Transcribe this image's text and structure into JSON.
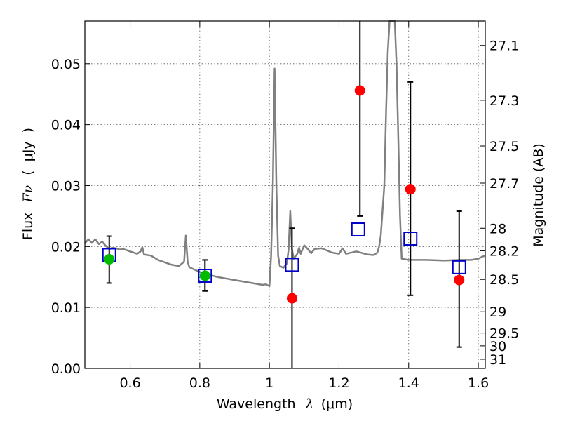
{
  "chart_data": {
    "type": "scatter",
    "xlabel": "Wavelength",
    "xlabel_symbol": "λ",
    "xlabel_unit_open": "(",
    "xlabel_unit": "μm",
    "xlabel_unit_close": ")",
    "ylabel": "Flux",
    "ylabel_symbol": "Fν",
    "ylabel_unit_open": "(",
    "ylabel_unit": "μJy",
    "ylabel_unit_close": ")",
    "y2label": "Magnitude (AB)",
    "xlim": [
      0.47,
      1.62
    ],
    "ylim": [
      0.0,
      0.057
    ],
    "xticks": [
      {
        "v": 0.6,
        "label": "0.6"
      },
      {
        "v": 0.8,
        "label": "0.8"
      },
      {
        "v": 1.0,
        "label": "1"
      },
      {
        "v": 1.2,
        "label": "1.2"
      },
      {
        "v": 1.4,
        "label": "1.4"
      },
      {
        "v": 1.6,
        "label": "1.6"
      }
    ],
    "yticks": [
      {
        "v": 0.0,
        "label": "0.00"
      },
      {
        "v": 0.01,
        "label": "0.01"
      },
      {
        "v": 0.02,
        "label": "0.02"
      },
      {
        "v": 0.03,
        "label": "0.03"
      },
      {
        "v": 0.04,
        "label": "0.04"
      },
      {
        "v": 0.05,
        "label": "0.05"
      }
    ],
    "magnitude_ticks": [
      {
        "v": 0.053,
        "label": "27.1"
      },
      {
        "v": 0.044,
        "label": "27.3"
      },
      {
        "v": 0.0365,
        "label": "27.5"
      },
      {
        "v": 0.0304,
        "label": "27.7"
      },
      {
        "v": 0.023,
        "label": "28"
      },
      {
        "v": 0.0193,
        "label": "28.2"
      },
      {
        "v": 0.0146,
        "label": "28.5"
      },
      {
        "v": 0.0093,
        "label": "29"
      },
      {
        "v": 0.0058,
        "label": "29.5"
      },
      {
        "v": 0.0037,
        "label": "30"
      },
      {
        "v": 0.0015,
        "label": "31"
      }
    ],
    "series": [
      {
        "name": "model_spectrum",
        "kind": "line",
        "color": "#808080",
        "x": [
          0.47,
          0.48,
          0.49,
          0.5,
          0.51,
          0.52,
          0.53,
          0.54,
          0.55,
          0.56,
          0.57,
          0.58,
          0.6,
          0.62,
          0.63,
          0.635,
          0.64,
          0.66,
          0.68,
          0.7,
          0.72,
          0.74,
          0.755,
          0.76,
          0.765,
          0.77,
          0.8,
          0.85,
          0.9,
          0.95,
          0.98,
          0.99,
          1.0,
          1.005,
          1.01,
          1.015,
          1.02,
          1.025,
          1.03,
          1.04,
          1.05,
          1.055,
          1.06,
          1.065,
          1.07,
          1.08,
          1.085,
          1.09,
          1.1,
          1.11,
          1.12,
          1.13,
          1.15,
          1.18,
          1.2,
          1.21,
          1.22,
          1.25,
          1.28,
          1.3,
          1.31,
          1.315,
          1.32,
          1.33,
          1.335,
          1.34,
          1.345,
          1.35,
          1.355,
          1.36,
          1.365,
          1.37,
          1.375,
          1.38,
          1.4,
          1.45,
          1.5,
          1.55,
          1.58,
          1.6,
          1.61,
          1.62
        ],
        "y": [
          0.0205,
          0.0212,
          0.0206,
          0.0212,
          0.0204,
          0.0208,
          0.0201,
          0.0196,
          0.0198,
          0.0197,
          0.0195,
          0.0196,
          0.0192,
          0.0188,
          0.0192,
          0.0199,
          0.0187,
          0.0185,
          0.0178,
          0.0174,
          0.017,
          0.0168,
          0.0175,
          0.0218,
          0.0175,
          0.0166,
          0.0158,
          0.015,
          0.0145,
          0.014,
          0.0137,
          0.0138,
          0.0135,
          0.0185,
          0.03,
          0.0492,
          0.03,
          0.0185,
          0.0168,
          0.0165,
          0.0172,
          0.0195,
          0.0258,
          0.0195,
          0.018,
          0.0188,
          0.0198,
          0.0188,
          0.0202,
          0.0196,
          0.0189,
          0.0196,
          0.0197,
          0.019,
          0.0188,
          0.0197,
          0.0188,
          0.0192,
          0.0187,
          0.0186,
          0.019,
          0.02,
          0.0218,
          0.03,
          0.042,
          0.052,
          0.057,
          0.057,
          0.057,
          0.057,
          0.05,
          0.038,
          0.025,
          0.018,
          0.0178,
          0.0178,
          0.0177,
          0.0178,
          0.0178,
          0.018,
          0.0183,
          0.0185
        ]
      },
      {
        "name": "model_photometry",
        "kind": "open_square",
        "color": "#0000cc",
        "x": [
          0.54,
          0.815,
          1.065,
          1.255,
          1.405,
          1.545
        ],
        "y": [
          0.0186,
          0.0152,
          0.017,
          0.0228,
          0.0213,
          0.0166
        ]
      },
      {
        "name": "observed_hst_optical",
        "kind": "circle",
        "color": "#00bb00",
        "x": [
          0.54,
          0.815
        ],
        "y": [
          0.0179,
          0.0152
        ],
        "yerr_low": [
          0.014,
          0.0127
        ],
        "yerr_high": [
          0.0217,
          0.0178
        ]
      },
      {
        "name": "observed_hst_nir",
        "kind": "circle",
        "color": "#ff0000",
        "x": [
          1.065,
          1.26,
          1.405,
          1.545
        ],
        "y": [
          0.0115,
          0.0456,
          0.0294,
          0.0145
        ],
        "yerr_low": [
          0.0,
          0.025,
          0.012,
          0.0035
        ],
        "yerr_high": [
          0.023,
          0.057,
          0.047,
          0.0258
        ]
      }
    ]
  }
}
